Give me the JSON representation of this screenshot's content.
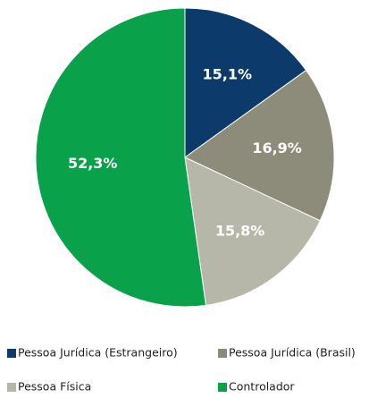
{
  "chart_data": {
    "type": "pie",
    "categories": [
      "Pessoa Jurídica (Estrangeiro)",
      "Pessoa Jurídica (Brasil)",
      "Pessoa Física",
      "Controlador"
    ],
    "values": [
      15.1,
      16.9,
      15.8,
      52.3
    ],
    "value_labels": [
      "15,1%",
      "16,9%",
      "15,8%",
      "52,3%"
    ],
    "colors": [
      "#0c3a6a",
      "#8d8c7a",
      "#b6b6a9",
      "#0aa14b"
    ]
  }
}
